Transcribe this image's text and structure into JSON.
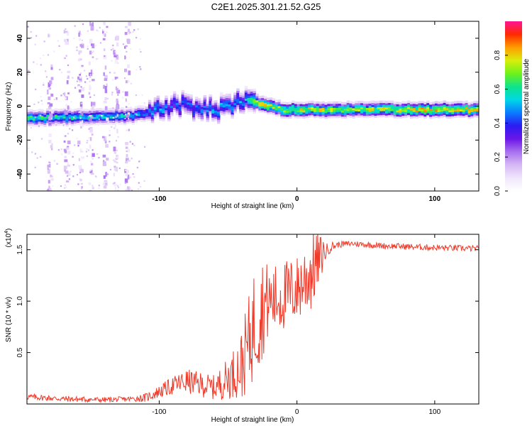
{
  "title": "C2E1.2025.301.21.52.G25",
  "colors": {
    "snr_line": "#f03a2a",
    "colormap": [
      "#ffffff",
      "#f0e6fb",
      "#d6b8f5",
      "#a970ee",
      "#6a16e8",
      "#2b1cf2",
      "#0a7cff",
      "#00d8e6",
      "#10e38a",
      "#6ef21a",
      "#d9ee0c",
      "#ff9c00",
      "#ff2a00",
      "#ff1493"
    ]
  },
  "chart_data": [
    {
      "type": "heatmap",
      "name": "spectrogram",
      "xlabel": "Height of straight line (km)",
      "ylabel": "Frequency (Hz)",
      "xlim": [
        -196,
        132
      ],
      "ylim": [
        -50,
        50
      ],
      "xticks": [
        -100,
        0,
        100
      ],
      "yticks": [
        -40,
        -20,
        0,
        20,
        40
      ],
      "xtick_labels": [
        "-100",
        "0",
        "100"
      ],
      "ytick_labels": [
        "-40",
        "-20",
        "0",
        "20",
        "40"
      ],
      "colorbar": {
        "label": "Normalized spectral amplitude",
        "range": [
          0,
          1
        ],
        "ticks": [
          0.0,
          0.2,
          0.4,
          0.6,
          0.8
        ],
        "tick_labels": [
          "0.0",
          "0.2",
          "0.4",
          "0.6",
          "0.8"
        ]
      },
      "ridge": {
        "description": "main spectral line frequency (Hz) vs height (km)",
        "x": [
          -196,
          -150,
          -120,
          -110,
          -100,
          -90,
          -80,
          -70,
          -60,
          -50,
          -40,
          -35,
          -30,
          -25,
          -20,
          -15,
          -10,
          0,
          10,
          20,
          40,
          80,
          100,
          132
        ],
        "y": [
          -7,
          -6,
          -5.5,
          -4,
          -1,
          0,
          1,
          -1,
          -2,
          1,
          4,
          3,
          2,
          1,
          0,
          -1,
          -2,
          -2,
          -2,
          -2,
          -2,
          -2,
          -2,
          -2
        ],
        "amplitude": [
          0.65,
          0.6,
          0.55,
          0.5,
          0.5,
          0.45,
          0.45,
          0.45,
          0.5,
          0.5,
          0.5,
          0.6,
          0.75,
          0.85,
          0.8,
          0.75,
          0.75,
          0.8,
          0.8,
          0.8,
          0.75,
          0.8,
          0.85,
          0.8
        ]
      }
    },
    {
      "type": "line",
      "name": "snr",
      "xlabel": "Height of straight line (km)",
      "ylabel": "SNR (10 * v/v)",
      "y_multiplier_label": "(x10",
      "y_multiplier_exp": "4",
      "y_multiplier_close": ")",
      "xlim": [
        -196,
        132
      ],
      "ylim": [
        0,
        1.65
      ],
      "xticks": [
        -100,
        0,
        100
      ],
      "yticks": [
        0.5,
        1.0,
        1.5
      ],
      "xtick_labels": [
        "-100",
        "0",
        "100"
      ],
      "ytick_labels": [
        "0.5",
        "1.0",
        "1.5"
      ],
      "envelope": {
        "x": [
          -196,
          -170,
          -140,
          -120,
          -110,
          -100,
          -90,
          -80,
          -70,
          -60,
          -50,
          -40,
          -35,
          -30,
          -25,
          -20,
          -15,
          -10,
          -5,
          0,
          5,
          10,
          15,
          20,
          25,
          30,
          40,
          60,
          80,
          100,
          132
        ],
        "y": [
          0.07,
          0.05,
          0.04,
          0.05,
          0.06,
          0.12,
          0.18,
          0.22,
          0.19,
          0.16,
          0.25,
          0.38,
          0.6,
          0.82,
          0.95,
          1.0,
          1.02,
          1.05,
          1.08,
          1.12,
          1.2,
          1.28,
          1.38,
          1.48,
          1.53,
          1.55,
          1.56,
          1.54,
          1.53,
          1.52,
          1.51
        ]
      },
      "noise": {
        "x": [
          -196,
          -120,
          -100,
          -80,
          -60,
          -45,
          -35,
          -30,
          -25,
          -20,
          -10,
          0,
          10,
          15,
          22,
          30,
          132
        ],
        "amp": [
          0.03,
          0.025,
          0.06,
          0.12,
          0.12,
          0.25,
          0.45,
          0.6,
          0.5,
          0.35,
          0.35,
          0.33,
          0.4,
          0.3,
          0.06,
          0.03,
          0.03
        ]
      }
    }
  ]
}
